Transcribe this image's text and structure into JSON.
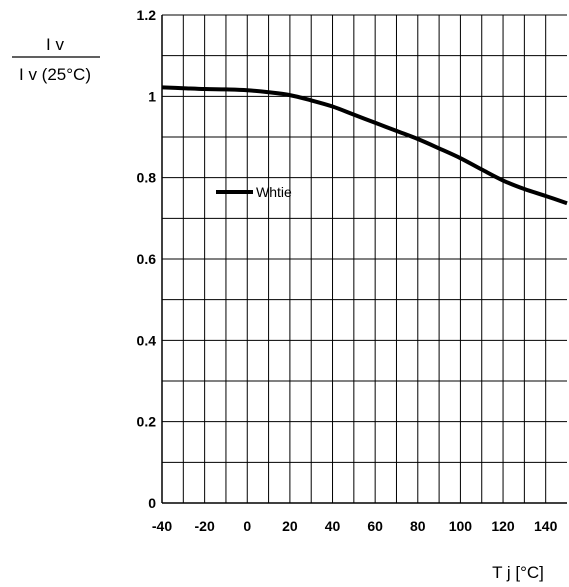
{
  "chart_data": {
    "type": "line",
    "xlabel": "T j [°C]",
    "ylabel_numerator": "I v",
    "ylabel_denominator": "I v (25°C)",
    "xlim": [
      -40,
      150
    ],
    "ylim": [
      0,
      1.2
    ],
    "x_ticks": [
      -40,
      -20,
      0,
      20,
      40,
      60,
      80,
      100,
      120,
      140
    ],
    "x_tick_labels": [
      "-40",
      "-20",
      "0",
      "20",
      "40",
      "60",
      "80",
      "100",
      "120",
      "140"
    ],
    "y_ticks": [
      0,
      0.2,
      0.4,
      0.6,
      0.8,
      1,
      1.2
    ],
    "y_tick_labels": [
      "0",
      "0.2",
      "0.4",
      "0.6",
      "0.8",
      "1",
      "1.2"
    ],
    "grid": true,
    "legend_position": "upper-left inside",
    "series": [
      {
        "name": "Whtie",
        "color": "#000000",
        "x": [
          -40,
          -30,
          -20,
          -10,
          0,
          10,
          20,
          30,
          40,
          50,
          60,
          70,
          80,
          90,
          100,
          110,
          120,
          130,
          140,
          150
        ],
        "y": [
          1.022,
          1.02,
          1.018,
          1.017,
          1.015,
          1.01,
          1.003,
          0.99,
          0.975,
          0.955,
          0.935,
          0.915,
          0.895,
          0.872,
          0.848,
          0.82,
          0.793,
          0.772,
          0.755,
          0.737
        ]
      }
    ]
  }
}
